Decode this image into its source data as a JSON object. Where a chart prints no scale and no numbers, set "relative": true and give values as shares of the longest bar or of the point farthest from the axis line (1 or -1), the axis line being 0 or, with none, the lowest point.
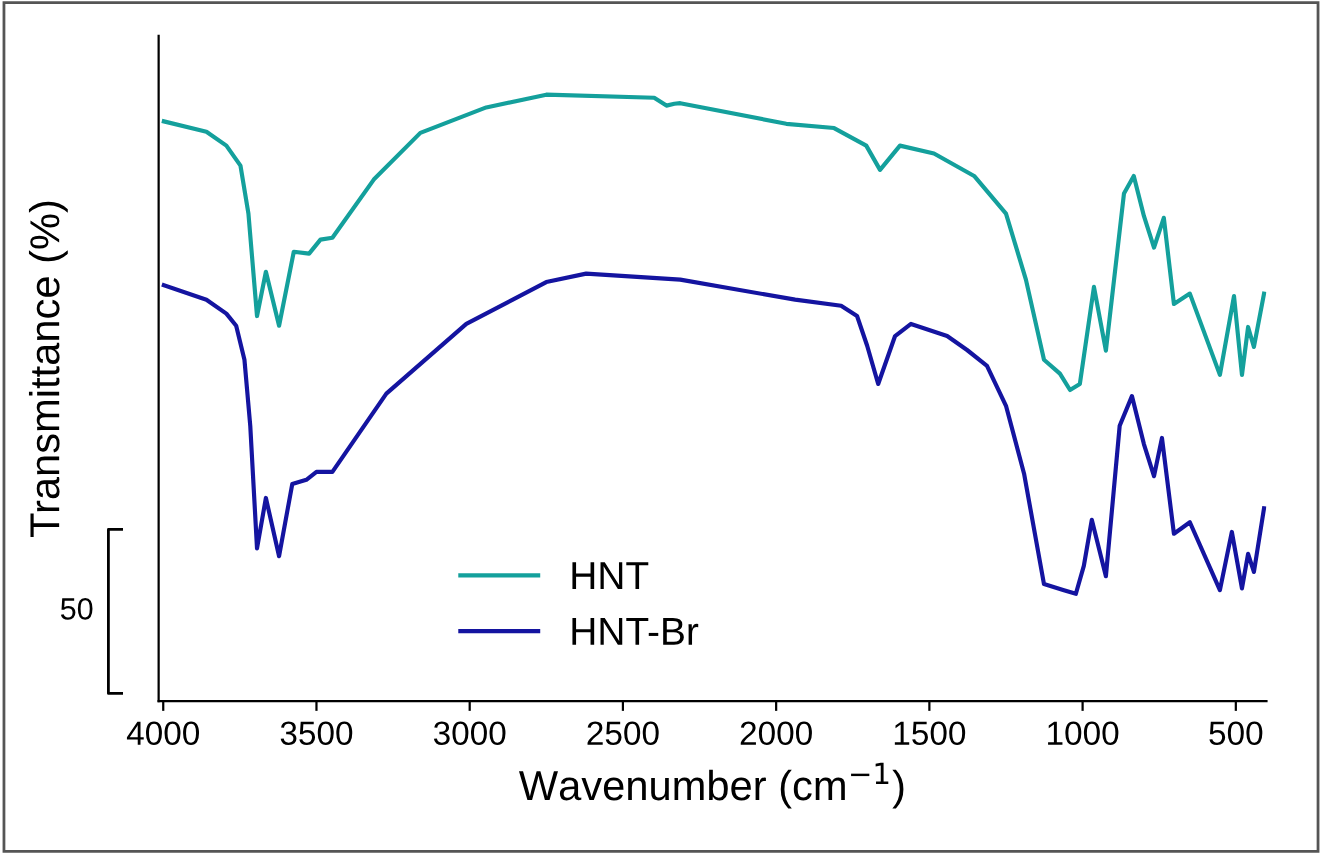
{
  "chart_data": {
    "type": "line",
    "relative": true,
    "xlabel": "Wavenumber (cm$^{−1}$)",
    "ylabel": "Transmittance (%)",
    "xlim": [
      4015,
      400
    ],
    "xticks": [
      4000,
      3500,
      3000,
      2500,
      2000,
      1500,
      1000,
      500
    ],
    "legend": "bottom",
    "grid": false,
    "marker": "none",
    "line_style": "solid",
    "annotations": [
      "50"
    ],
    "series": [
      {
        "name": "HNT",
        "color": "#14a09c",
        "x": [
          3998,
          3859,
          3794,
          3748,
          3722,
          3694,
          3665,
          3622,
          3574,
          3524,
          3487,
          3448,
          3313,
          3161,
          2946,
          2750,
          2398,
          2358,
          2332,
          2313,
          1967,
          1811,
          1706,
          1661,
          1596,
          1485,
          1354,
          1250,
          1185,
          1126,
          1074,
          1041,
          1009,
          963,
          924,
          865,
          833,
          800,
          767,
          735,
          702,
          650,
          552,
          506,
          480,
          460,
          441,
          408
        ],
        "values": [
          0.956,
          0.939,
          0.916,
          0.883,
          0.804,
          0.635,
          0.708,
          0.619,
          0.741,
          0.738,
          0.761,
          0.764,
          0.86,
          0.937,
          0.979,
          1.0,
          0.995,
          0.982,
          0.985,
          0.986,
          0.952,
          0.945,
          0.916,
          0.876,
          0.916,
          0.903,
          0.866,
          0.804,
          0.695,
          0.563,
          0.54,
          0.513,
          0.523,
          0.683,
          0.578,
          0.837,
          0.866,
          0.8,
          0.748,
          0.797,
          0.655,
          0.672,
          0.538,
          0.668,
          0.538,
          0.617,
          0.584,
          0.672
        ]
      },
      {
        "name": "HNT-Br",
        "color": "#1414a0",
        "x": [
          3998,
          3859,
          3794,
          3762,
          3735,
          3716,
          3694,
          3665,
          3622,
          3579,
          3533,
          3500,
          3448,
          3272,
          3011,
          2750,
          2620,
          2313,
          1938,
          1788,
          1736,
          1703,
          1667,
          1612,
          1560,
          1442,
          1377,
          1312,
          1250,
          1191,
          1126,
          1061,
          1022,
          996,
          970,
          924,
          879,
          839,
          800,
          767,
          741,
          702,
          650,
          552,
          513,
          480,
          460,
          441,
          408
        ],
        "values": [
          0.686,
          0.662,
          0.639,
          0.619,
          0.563,
          0.454,
          0.252,
          0.335,
          0.239,
          0.358,
          0.365,
          0.378,
          0.378,
          0.507,
          0.622,
          0.691,
          0.705,
          0.695,
          0.662,
          0.652,
          0.635,
          0.586,
          0.523,
          0.602,
          0.622,
          0.602,
          0.579,
          0.553,
          0.487,
          0.375,
          0.193,
          0.183,
          0.177,
          0.223,
          0.299,
          0.206,
          0.454,
          0.503,
          0.424,
          0.371,
          0.434,
          0.276,
          0.295,
          0.183,
          0.279,
          0.186,
          0.243,
          0.213,
          0.318
        ]
      }
    ]
  }
}
